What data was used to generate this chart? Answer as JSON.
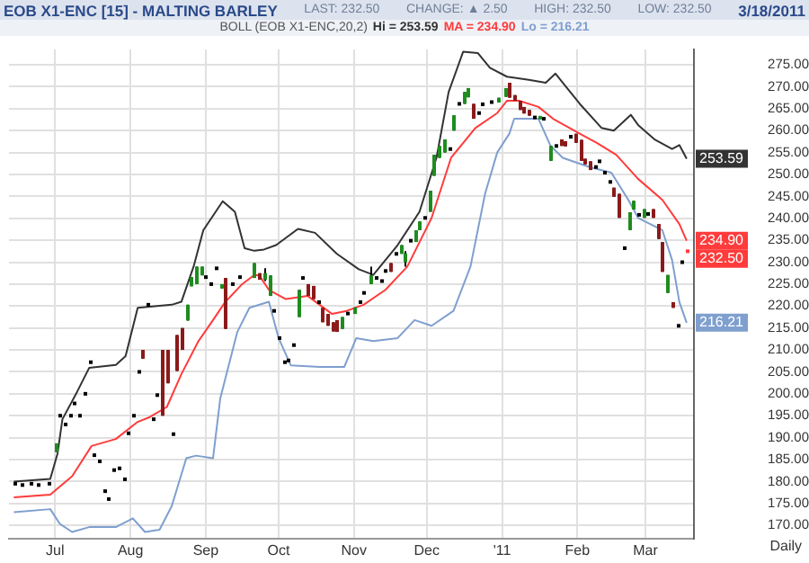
{
  "chart_data": {
    "type": "candlestick",
    "title": "EOB X1-ENC [15] - MALTING BARLEY",
    "subtitle": "BOLL (EOB X1-ENC,20,2)",
    "annotations": [
      "LAST: 232.50",
      "CHANGE: ▲ 2.50",
      "HIGH: 232.50",
      "LOW: 232.50",
      "3/18/2011",
      "Daily"
    ],
    "x": [
      "2010-06-14",
      "2010-06-17",
      "2010-06-21",
      "2010-06-24",
      "2010-06-28",
      "2010-07-01",
      "2010-07-03",
      "2010-07-05",
      "2010-07-07",
      "2010-07-09",
      "2010-07-11",
      "2010-07-13",
      "2010-07-15",
      "2010-07-17",
      "2010-07-19",
      "2010-07-21",
      "2010-07-23",
      "2010-07-25",
      "2010-07-27",
      "2010-07-29",
      "2010-07-31",
      "2010-08-02",
      "2010-08-04",
      "2010-08-06",
      "2010-08-08",
      "2010-08-10",
      "2010-08-12",
      "2010-08-14",
      "2010-08-16",
      "2010-08-18",
      "2010-08-20",
      "2010-08-22",
      "2010-08-24",
      "2010-08-26",
      "2010-08-28",
      "2010-08-30",
      "2010-09-01",
      "2010-09-03",
      "2010-09-05",
      "2010-09-07",
      "2010-09-09",
      "2010-09-12",
      "2010-09-15",
      "2010-09-21",
      "2010-09-23",
      "2010-09-25",
      "2010-09-27",
      "2010-09-29",
      "2010-10-01",
      "2010-10-03",
      "2010-10-05",
      "2010-10-07",
      "2010-10-09",
      "2010-10-11",
      "2010-10-13",
      "2010-10-15",
      "2010-10-17",
      "2010-10-19",
      "2010-10-21",
      "2010-10-23",
      "2010-10-25",
      "2010-10-27",
      "2010-10-29",
      "2010-11-01",
      "2010-11-03",
      "2010-11-05",
      "2010-11-08",
      "2010-11-10",
      "2010-11-12",
      "2010-11-14",
      "2010-11-16",
      "2010-11-18",
      "2010-11-20",
      "2010-11-22",
      "2010-11-24",
      "2010-11-26",
      "2010-11-28",
      "2010-11-30",
      "2010-12-02",
      "2010-12-04",
      "2010-12-06",
      "2010-12-08",
      "2010-12-10",
      "2010-12-12",
      "2010-12-14",
      "2010-12-16",
      "2010-12-18",
      "2010-12-20",
      "2010-12-22",
      "2010-12-24",
      "2010-12-27",
      "2010-12-30",
      "2011-01-02",
      "2011-01-04",
      "2011-01-06",
      "2011-01-08",
      "2011-01-10",
      "2011-01-12",
      "2011-01-14",
      "2011-01-16",
      "2011-01-18",
      "2011-01-21",
      "2011-01-23",
      "2011-01-25",
      "2011-01-27",
      "2011-01-29",
      "2011-01-31",
      "2011-02-02",
      "2011-02-04",
      "2011-02-06",
      "2011-02-08",
      "2011-02-10",
      "2011-02-12",
      "2011-02-14",
      "2011-02-16",
      "2011-02-18",
      "2011-02-20",
      "2011-02-22",
      "2011-02-24",
      "2011-02-26",
      "2011-02-28",
      "2011-03-02",
      "2011-03-04",
      "2011-03-06",
      "2011-03-08",
      "2011-03-10",
      "2011-03-12",
      "2011-03-14",
      "2011-03-16",
      "2011-03-18"
    ],
    "ohlc": [
      [
        179.5,
        179.5,
        179.5,
        179.5
      ],
      [
        179.2,
        179.2,
        179.2,
        179.2
      ],
      [
        179.5,
        179.5,
        179.5,
        179.5
      ],
      [
        179.2,
        179.2,
        179.2,
        179.2
      ],
      [
        179.5,
        179.5,
        179.5,
        179.5
      ],
      [
        186.7,
        188.7,
        186.7,
        188.7
      ],
      [
        195,
        195,
        195,
        195
      ],
      [
        193,
        193,
        193,
        193
      ],
      [
        195,
        195,
        195,
        195
      ],
      [
        197.8,
        197.8,
        197.8,
        197.8
      ],
      [
        195,
        195,
        195,
        195
      ],
      [
        200,
        200,
        200,
        200
      ],
      [
        207.2,
        207.2,
        207.2,
        207.2
      ],
      [
        186,
        186,
        186,
        186
      ],
      [
        184.6,
        184.6,
        184.6,
        184.6
      ],
      [
        177.8,
        177.8,
        177.8,
        177.8
      ],
      [
        176,
        176,
        176,
        176
      ],
      [
        182.6,
        182.6,
        182.6,
        182.6
      ],
      [
        183,
        183,
        183,
        183
      ],
      [
        180.5,
        180.5,
        180.5,
        180.5
      ],
      [
        191,
        191,
        191,
        191
      ],
      [
        195,
        195,
        195,
        195
      ],
      [
        205,
        205,
        205,
        205
      ],
      [
        210,
        210,
        208,
        208
      ],
      [
        220.3,
        220.3,
        220.3,
        220.3
      ],
      [
        194.2,
        194.2,
        194.2,
        194.2
      ],
      [
        199.7,
        199.7,
        199.7,
        199.7
      ],
      [
        210,
        210,
        195,
        195
      ],
      [
        210,
        210,
        202.4,
        202.4
      ],
      [
        190.8,
        190.8,
        190.8,
        190.8
      ],
      [
        213.4,
        213.4,
        205.2,
        205.2
      ],
      [
        215,
        215,
        210,
        210
      ],
      [
        216.7,
        220.3,
        216.7,
        220.3
      ],
      [
        224.5,
        226.6,
        224.5,
        226.6
      ],
      [
        225,
        229,
        225,
        229
      ],
      [
        227,
        229,
        227,
        229
      ],
      [
        226.6,
        226.6,
        226.6,
        226.6
      ],
      [
        225,
        225,
        225,
        225
      ],
      [
        228.6,
        228.6,
        228.6,
        228.6
      ],
      [
        224,
        225,
        224,
        225
      ],
      [
        226.4,
        226.4,
        214.8,
        214.8
      ],
      [
        225,
        225,
        225,
        225
      ],
      [
        226.6,
        226.6,
        226.6,
        226.6
      ],
      [
        226.4,
        229.8,
        226.4,
        229.8
      ],
      [
        227.5,
        227.5,
        226,
        226
      ],
      [
        226,
        228.6,
        225.7,
        227.5
      ],
      [
        222.3,
        227,
        222.3,
        227
      ],
      [
        218.9,
        218.9,
        218.9,
        218.9
      ],
      [
        212.7,
        212.7,
        212.7,
        212.7
      ],
      [
        207.2,
        207.2,
        207.2,
        207.2
      ],
      [
        207.6,
        207.6,
        207.6,
        207.6
      ],
      [
        211.1,
        211.1,
        211.1,
        211.1
      ],
      [
        217.5,
        223.7,
        217.5,
        223.7
      ],
      [
        226.4,
        226.4,
        226.4,
        226.4
      ],
      [
        225,
        225,
        222.3,
        222.3
      ],
      [
        224.6,
        224.6,
        221.6,
        221.6
      ],
      [
        220.9,
        220.9,
        220.9,
        220.9
      ],
      [
        219.6,
        219.6,
        216.3,
        216.3
      ],
      [
        218.2,
        218.2,
        215.5,
        215.5
      ],
      [
        216.3,
        216.3,
        214.2,
        214.2
      ],
      [
        216.8,
        216.8,
        214.1,
        214.1
      ],
      [
        214.8,
        217.5,
        214.8,
        217.5
      ],
      [
        218.3,
        218.3,
        218.3,
        218.3
      ],
      [
        218.2,
        219.7,
        218.2,
        219.7
      ],
      [
        220.9,
        220.9,
        220.9,
        220.9
      ],
      [
        223,
        223,
        223,
        223
      ],
      [
        225,
        229,
        225,
        227
      ],
      [
        226.4,
        226.4,
        226.4,
        226.4
      ],
      [
        225.7,
        225.7,
        225.7,
        225.7
      ],
      [
        228,
        228,
        228,
        228
      ],
      [
        229.8,
        229.8,
        227.8,
        227.8
      ],
      [
        231.9,
        231.9,
        231.9,
        231.9
      ],
      [
        231.9,
        233.9,
        231.9,
        233.9
      ],
      [
        230,
        232.5,
        229,
        232
      ],
      [
        234.9,
        234.9,
        234.9,
        234.9
      ],
      [
        234.6,
        237.3,
        234.6,
        237.3
      ],
      [
        237.3,
        239.3,
        237.3,
        239.3
      ],
      [
        240.1,
        240.1,
        240.1,
        240.1
      ],
      [
        241.5,
        246.3,
        241.5,
        246.3
      ],
      [
        249.7,
        254.5,
        249.7,
        254.5
      ],
      [
        253.8,
        256.5,
        253.8,
        256.5
      ],
      [
        255,
        258,
        255,
        258
      ],
      [
        255.8,
        255.8,
        255.8,
        255.8
      ],
      [
        260,
        263.5,
        260,
        263.5
      ],
      [
        266.1,
        266.1,
        266.1,
        266.1
      ],
      [
        266.1,
        268.8,
        266.1,
        268.8
      ],
      [
        267.6,
        269.7,
        267.6,
        269.7
      ],
      [
        266.1,
        266.1,
        262.7,
        262.7
      ],
      [
        264,
        264,
        264,
        264
      ],
      [
        266,
        266,
        266,
        266
      ],
      [
        266.5,
        266.5,
        266.5,
        266.5
      ],
      [
        266.4,
        267.5,
        266.4,
        267.5
      ],
      [
        267.7,
        269.7,
        267.7,
        269.7
      ],
      [
        270.9,
        270.9,
        267.5,
        267.5
      ],
      [
        268.1,
        268.1,
        266.8,
        266.8
      ],
      [
        266.8,
        266.8,
        264.7,
        264.7
      ],
      [
        265.4,
        265.4,
        263.9,
        263.9
      ],
      [
        264.7,
        264.7,
        263.4,
        263.4
      ],
      [
        263,
        263,
        263,
        263
      ],
      [
        262.7,
        263.2,
        262.7,
        263.2
      ],
      [
        262.7,
        262.7,
        262.7,
        262.7
      ],
      [
        253.1,
        256.5,
        253.1,
        256.5
      ],
      [
        256.5,
        256.5,
        256.5,
        256.5
      ],
      [
        258,
        258,
        256.5,
        256.5
      ],
      [
        257.6,
        257.6,
        256.4,
        256.4
      ],
      [
        258.6,
        258.6,
        258.6,
        258.6
      ],
      [
        259.3,
        259.3,
        257.2,
        257.2
      ],
      [
        257.9,
        257.9,
        253.1,
        253.1
      ],
      [
        253.6,
        253.6,
        252.3,
        252.3
      ],
      [
        253,
        253,
        251,
        251
      ],
      [
        251.7,
        251.7,
        251.7,
        251.7
      ],
      [
        253,
        253,
        253,
        253
      ],
      [
        250.4,
        250.4,
        250.4,
        250.4
      ],
      [
        248.3,
        248.3,
        248.3,
        248.3
      ],
      [
        247,
        247,
        244.9,
        244.9
      ],
      [
        245.6,
        245.6,
        240.1,
        240.1
      ],
      [
        233.2,
        233.2,
        233.2,
        233.2
      ],
      [
        237.3,
        241.4,
        237.3,
        241.4
      ],
      [
        242,
        244,
        242,
        244
      ],
      [
        240.8,
        240.8,
        240.8,
        240.8
      ],
      [
        240.1,
        242.1,
        240.1,
        242.1
      ],
      [
        241,
        241,
        241,
        241
      ],
      [
        242.1,
        242.1,
        240.1,
        240.1
      ],
      [
        238.7,
        238.7,
        235.3,
        235.3
      ],
      [
        234.6,
        234.6,
        227.8,
        227.8
      ],
      [
        223,
        227.1,
        223,
        227.1
      ],
      [
        220.9,
        220.9,
        219.6,
        219.6
      ],
      [
        215.5,
        215.5,
        215.5,
        215.5
      ],
      [
        230,
        230,
        230,
        230
      ],
      [
        232.5,
        232.5,
        232.5,
        232.5
      ]
    ],
    "colors": [
      "#000000",
      "#000000",
      "#000000",
      "#000000",
      "#000000",
      "#1e8c1e",
      "#000000",
      "#000000",
      "#000000",
      "#000000",
      "#000000",
      "#000000",
      "#000000",
      "#000000",
      "#000000",
      "#000000",
      "#000000",
      "#000000",
      "#000000",
      "#000000",
      "#000000",
      "#000000",
      "#000000",
      "#8b1a1a",
      "#000000",
      "#000000",
      "#000000",
      "#8b1a1a",
      "#8b1a1a",
      "#000000",
      "#8b1a1a",
      "#8b1a1a",
      "#1e8c1e",
      "#1e8c1e",
      "#1e8c1e",
      "#1e8c1e",
      "#000000",
      "#000000",
      "#000000",
      "#1e8c1e",
      "#8b1a1a",
      "#000000",
      "#000000",
      "#1e8c1e",
      "#8b1a1a",
      "#1e8c1e",
      "#1e8c1e",
      "#000000",
      "#000000",
      "#000000",
      "#000000",
      "#000000",
      "#1e8c1e",
      "#000000",
      "#8b1a1a",
      "#8b1a1a",
      "#000000",
      "#8b1a1a",
      "#8b1a1a",
      "#8b1a1a",
      "#8b1a1a",
      "#1e8c1e",
      "#000000",
      "#1e8c1e",
      "#000000",
      "#000000",
      "#1e8c1e",
      "#000000",
      "#000000",
      "#000000",
      "#8b1a1a",
      "#000000",
      "#1e8c1e",
      "#1e8c1e",
      "#000000",
      "#1e8c1e",
      "#1e8c1e",
      "#000000",
      "#1e8c1e",
      "#1e8c1e",
      "#1e8c1e",
      "#1e8c1e",
      "#000000",
      "#1e8c1e",
      "#000000",
      "#1e8c1e",
      "#1e8c1e",
      "#8b1a1a",
      "#000000",
      "#000000",
      "#000000",
      "#1e8c1e",
      "#1e8c1e",
      "#8b1a1a",
      "#8b1a1a",
      "#8b1a1a",
      "#8b1a1a",
      "#8b1a1a",
      "#000000",
      "#1e8c1e",
      "#000000",
      "#1e8c1e",
      "#000000",
      "#8b1a1a",
      "#8b1a1a",
      "#000000",
      "#8b1a1a",
      "#8b1a1a",
      "#8b1a1a",
      "#8b1a1a",
      "#000000",
      "#000000",
      "#000000",
      "#000000",
      "#8b1a1a",
      "#8b1a1a",
      "#000000",
      "#1e8c1e",
      "#1e8c1e",
      "#000000",
      "#1e8c1e",
      "#000000",
      "#8b1a1a",
      "#8b1a1a",
      "#8b1a1a",
      "#1e8c1e",
      "#8b1a1a",
      "#000000",
      "#000000",
      "#ff3b3b"
    ],
    "value_labels": [
      null,
      null,
      null,
      null,
      null,
      null,
      null,
      null,
      null,
      null,
      null,
      null,
      null,
      null,
      null,
      null,
      null,
      null,
      null,
      null,
      null,
      null,
      null,
      null,
      null,
      null,
      null,
      null,
      null,
      null,
      null,
      null,
      null,
      null,
      null,
      null,
      null,
      null,
      null,
      null,
      null,
      null,
      null,
      null,
      null,
      null,
      null,
      null,
      null,
      null,
      null,
      null,
      null,
      null,
      null,
      null,
      null,
      null,
      null,
      null,
      null,
      null,
      null,
      null,
      null,
      null,
      null,
      null,
      null,
      null,
      null,
      null,
      null,
      null,
      null,
      null,
      null,
      null,
      null,
      null,
      null,
      null,
      null,
      null,
      null,
      null,
      null,
      null,
      null,
      null,
      null,
      null,
      null,
      null,
      null,
      null,
      null,
      null,
      null,
      null,
      null,
      null,
      null,
      null,
      null,
      null,
      null,
      null,
      null,
      null,
      null,
      null,
      null,
      null,
      null,
      null,
      null,
      null,
      null,
      null,
      null,
      null,
      null,
      null,
      null,
      null,
      null,
      null,
      null,
      "232.50"
    ],
    "series": [
      {
        "name": "Hi = 253.59",
        "type": "line",
        "color": "#333333",
        "x": [
          "2010-06-14",
          "2010-06-29",
          "2010-07-02",
          "2010-07-04",
          "2010-07-10",
          "2010-07-15",
          "2010-07-26",
          "2010-07-30",
          "2010-08-04",
          "2010-08-18",
          "2010-08-22",
          "2010-08-27",
          "2010-08-31",
          "2010-09-08",
          "2010-09-13",
          "2010-09-17",
          "2010-09-21",
          "2010-09-25",
          "2010-09-30",
          "2010-10-09",
          "2010-10-16",
          "2010-10-25",
          "2010-11-03",
          "2010-11-09",
          "2010-11-19",
          "2010-11-28",
          "2010-12-05",
          "2010-12-10",
          "2010-12-16",
          "2010-12-22",
          "2010-12-27",
          "2011-01-03",
          "2011-01-12",
          "2011-01-19",
          "2011-01-23",
          "2011-01-27",
          "2011-02-02",
          "2011-02-11",
          "2011-02-16",
          "2011-02-23",
          "2011-02-26",
          "2011-03-05",
          "2011-03-12",
          "2011-03-15",
          "2011-03-18"
        ],
        "values": [
          180,
          180.6,
          186.4,
          194.2,
          200.4,
          205.9,
          206.6,
          208.6,
          219.6,
          220.3,
          221,
          229,
          237.3,
          243.9,
          241.5,
          233.2,
          232.6,
          232.9,
          233.9,
          237.6,
          236.7,
          231.9,
          228.4,
          227.1,
          233.9,
          241.5,
          253.8,
          268.8,
          278,
          277.7,
          274.3,
          272.3,
          271.6,
          270.9,
          273,
          270.2,
          266.1,
          260.6,
          260,
          263.6,
          261.3,
          257.9,
          255.8,
          256.7,
          253.59
        ],
        "value_labels": [
          null,
          null,
          null,
          null,
          null,
          null,
          null,
          null,
          null,
          null,
          null,
          null,
          null,
          null,
          null,
          null,
          null,
          null,
          null,
          null,
          null,
          null,
          null,
          null,
          null,
          null,
          null,
          null,
          null,
          null,
          null,
          null,
          null,
          null,
          null,
          null,
          null,
          null,
          null,
          null,
          null,
          null,
          null,
          null,
          "253.59"
        ]
      },
      {
        "name": "MA = 234.90",
        "type": "line",
        "color": "#ff3b3b",
        "x": [
          "2010-06-14",
          "2010-06-29",
          "2010-07-08",
          "2010-07-16",
          "2010-07-26",
          "2010-08-04",
          "2010-08-09",
          "2010-08-16",
          "2010-08-22",
          "2010-08-29",
          "2010-09-04",
          "2010-09-09",
          "2010-09-16",
          "2010-09-21",
          "2010-09-23",
          "2010-09-27",
          "2010-10-04",
          "2010-10-13",
          "2010-10-23",
          "2010-10-29",
          "2010-11-05",
          "2010-11-14",
          "2010-11-23",
          "2010-12-03",
          "2010-12-11",
          "2010-12-21",
          "2010-12-30",
          "2011-01-03",
          "2011-01-08",
          "2011-01-16",
          "2011-01-22",
          "2011-02-02",
          "2011-02-09",
          "2011-02-17",
          "2011-02-26",
          "2011-03-08",
          "2011-03-15",
          "2011-03-18"
        ],
        "values": [
          176.4,
          177,
          181.2,
          188.1,
          189.7,
          193.6,
          194.7,
          197,
          204.5,
          212,
          216.8,
          220.9,
          225,
          227.1,
          227,
          223.7,
          221.6,
          222.3,
          218.2,
          218.9,
          220.3,
          223.7,
          229,
          240.1,
          253.8,
          260.6,
          264,
          266.8,
          266.8,
          265.4,
          262.7,
          259.3,
          257.2,
          254.5,
          249,
          244.2,
          238.7,
          234.9
        ],
        "value_labels": [
          null,
          null,
          null,
          null,
          null,
          null,
          null,
          null,
          null,
          null,
          null,
          null,
          null,
          null,
          null,
          null,
          null,
          null,
          null,
          null,
          null,
          null,
          null,
          null,
          null,
          null,
          null,
          null,
          null,
          null,
          null,
          null,
          null,
          null,
          null,
          null,
          null,
          "234.90"
        ]
      },
      {
        "name": "Lo = 216.21",
        "type": "line",
        "color": "#7f9fcf",
        "x": [
          "2010-06-14",
          "2010-06-29",
          "2010-07-03",
          "2010-07-08",
          "2010-07-15",
          "2010-07-26",
          "2010-08-02",
          "2010-08-07",
          "2010-08-13",
          "2010-08-18",
          "2010-08-24",
          "2010-08-28",
          "2010-09-04",
          "2010-09-07",
          "2010-09-14",
          "2010-09-19",
          "2010-09-27",
          "2010-10-01",
          "2010-10-06",
          "2010-10-18",
          "2010-10-28",
          "2010-11-02",
          "2010-11-09",
          "2010-11-19",
          "2010-11-26",
          "2010-12-03",
          "2010-12-12",
          "2010-12-19",
          "2010-12-25",
          "2010-12-30",
          "2011-01-04",
          "2011-01-06",
          "2011-01-16",
          "2011-01-21",
          "2011-01-26",
          "2011-02-06",
          "2011-02-15",
          "2011-02-22",
          "2011-02-26",
          "2011-03-08",
          "2011-03-12",
          "2011-03-15",
          "2011-03-18"
        ],
        "values": [
          173,
          173.7,
          170.3,
          168.5,
          169.6,
          169.6,
          171.6,
          168.5,
          169,
          174.4,
          185.3,
          185.9,
          185.3,
          199,
          214.1,
          219.6,
          221,
          212.7,
          206.5,
          206.1,
          206.1,
          212.7,
          212,
          212.7,
          216.8,
          215.5,
          218.9,
          229,
          245.6,
          255,
          259.3,
          262.7,
          262.7,
          256.5,
          253.8,
          251.7,
          250.4,
          244.2,
          240.1,
          237.3,
          230.5,
          220.9,
          216.21
        ],
        "value_labels": [
          null,
          null,
          null,
          null,
          null,
          null,
          null,
          null,
          null,
          null,
          null,
          null,
          null,
          null,
          null,
          null,
          null,
          null,
          null,
          null,
          null,
          null,
          null,
          null,
          null,
          null,
          null,
          null,
          null,
          null,
          null,
          null,
          null,
          null,
          null,
          null,
          null,
          null,
          null,
          null,
          null,
          null,
          "216.21"
        ]
      }
    ],
    "xlim": [
      "2010-06-12",
      "2011-03-21"
    ],
    "xticks": [
      {
        "value": "2010-07-01",
        "label": "Jul"
      },
      {
        "value": "2010-08-01",
        "label": "Aug"
      },
      {
        "value": "2010-09-01",
        "label": "Sep"
      },
      {
        "value": "2010-10-01",
        "label": "Oct"
      },
      {
        "value": "2010-11-01",
        "label": "Nov"
      },
      {
        "value": "2010-12-01",
        "label": "Dec"
      },
      {
        "value": "2011-01-01",
        "label": "'11"
      },
      {
        "value": "2011-02-01",
        "label": "Feb"
      },
      {
        "value": "2011-03-01",
        "label": "Mar"
      }
    ],
    "ylim": [
      167,
      278.5
    ],
    "yticks": [
      {
        "value": 170,
        "label": "170.00"
      },
      {
        "value": 175,
        "label": "175.00"
      },
      {
        "value": 180,
        "label": "180.00"
      },
      {
        "value": 185,
        "label": "185.00"
      },
      {
        "value": 190,
        "label": "190.00"
      },
      {
        "value": 195,
        "label": "195.00"
      },
      {
        "value": 200,
        "label": "200.00"
      },
      {
        "value": 205,
        "label": "205.00"
      },
      {
        "value": 210,
        "label": "210.00"
      },
      {
        "value": 215,
        "label": "215.00"
      },
      {
        "value": 220,
        "label": "220.00"
      },
      {
        "value": 225,
        "label": "225.00"
      },
      {
        "value": 230,
        "label": "230.00"
      },
      {
        "value": 235,
        "label": "235.00"
      },
      {
        "value": 240,
        "label": "240.00"
      },
      {
        "value": 245,
        "label": "245.00"
      },
      {
        "value": 250,
        "label": "250.00"
      },
      {
        "value": 255,
        "label": "255.00"
      },
      {
        "value": 260,
        "label": "260.00"
      },
      {
        "value": 265,
        "label": "265.00"
      },
      {
        "value": 270,
        "label": "270.00"
      },
      {
        "value": 275,
        "label": "275.00"
      }
    ],
    "grid": true,
    "legend": "top"
  }
}
